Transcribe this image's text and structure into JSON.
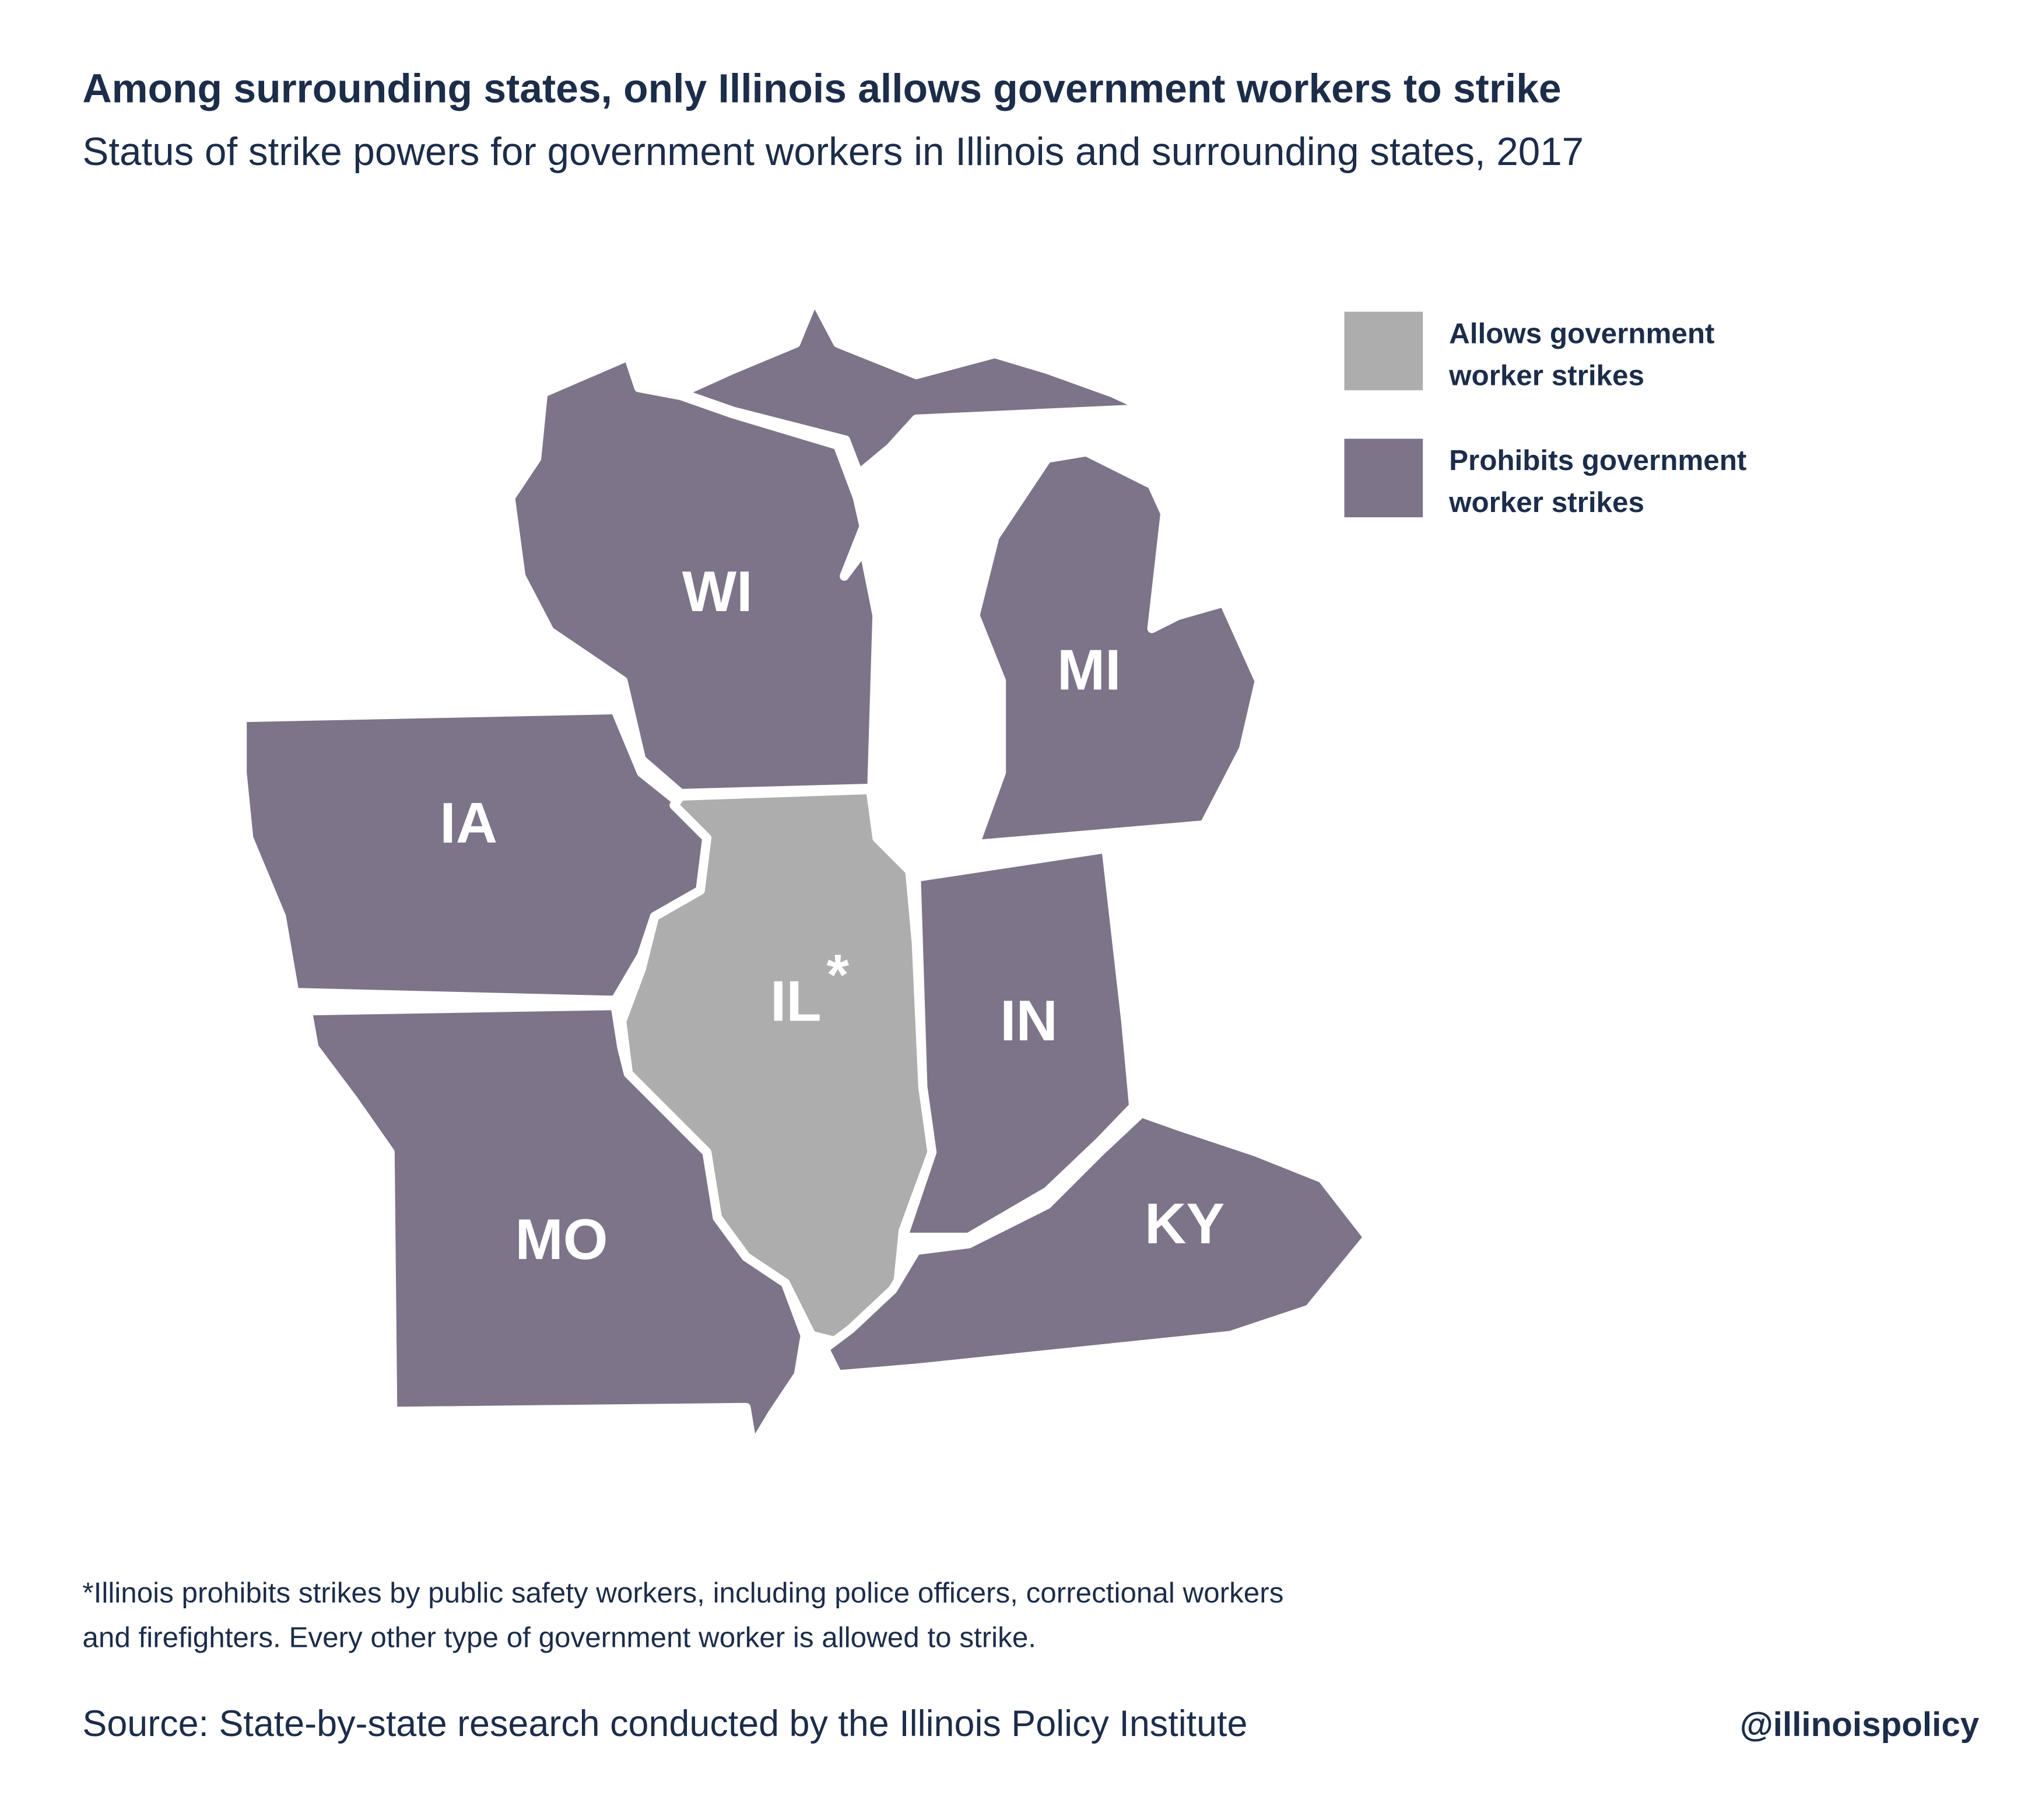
{
  "header": {
    "title": "Among surrounding states, only Illinois allows government workers to strike",
    "subtitle": "Status of strike powers for government workers in Illinois and surrounding states, 2017"
  },
  "legend": [
    {
      "lines": [
        "Allows government",
        "worker strikes"
      ],
      "color": "#adadad"
    },
    {
      "lines": [
        "Prohibits government",
        "worker strikes"
      ],
      "color": "#7d7489"
    }
  ],
  "states": [
    {
      "label": "WI",
      "color": "#7d7489"
    },
    {
      "label": "MI",
      "color": "#7d7489"
    },
    {
      "label": "IA",
      "color": "#7d7489"
    },
    {
      "label": "IL",
      "color": "#adadad",
      "mark": "*"
    },
    {
      "label": "IN",
      "color": "#7d7489"
    },
    {
      "label": "MO",
      "color": "#7d7489"
    },
    {
      "label": "KY",
      "color": "#7d7489"
    }
  ],
  "footnote": [
    "*Illinois prohibits strikes by public safety workers, including police officers, correctional workers",
    "and firefighters. Every other type of government worker is allowed to strike."
  ],
  "source": "Source: State-by-state research conducted by the Illinois Policy Institute",
  "handle": "@illinoispolicy"
}
